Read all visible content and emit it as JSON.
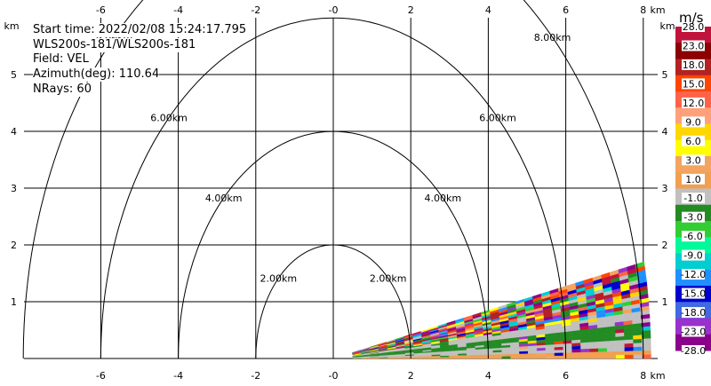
{
  "info": {
    "start_time": "Start time: 2022/02/08 15:24:17.795",
    "instrument": "WLS200s-181/WLS200s-181",
    "field": "Field: VEL",
    "azimuth": "Azimuth(deg): 110.64",
    "nrays": "NRays: 60"
  },
  "colorbar": {
    "units": "m/s",
    "labels": [
      "28.0",
      "23.0",
      "18.0",
      "15.0",
      "12.0",
      "9.0",
      "6.0",
      "3.0",
      "1.0",
      "-1.0",
      "-3.0",
      "-6.0",
      "-9.0",
      "-12.0",
      "-15.0",
      "-18.0",
      "-23.0",
      "-28.0"
    ],
    "colors": [
      "#c0143c",
      "#8b0000",
      "#b22222",
      "#ff4500",
      "#ff6347",
      "#ffa07a",
      "#ffd700",
      "#ffff00",
      "#f4a460",
      "#f0a050",
      "#c0c0c0",
      "#228b22",
      "#32cd32",
      "#00fa9a",
      "#00ced1",
      "#1e90ff",
      "#0000cd",
      "#4169e1",
      "#9932cc",
      "#8b008b"
    ]
  },
  "chart_data": {
    "type": "heatmap",
    "xlabel": "km",
    "ylabel": "km",
    "xlim": [
      -8.5,
      8.2
    ],
    "ylim": [
      0,
      6
    ],
    "x_ticks": [
      "-6",
      "-4",
      "-2",
      "-0",
      "2",
      "4",
      "6",
      "8"
    ],
    "y_ticks": [
      "1",
      "2",
      "3",
      "4",
      "5"
    ],
    "range_rings": [
      {
        "radius": 2,
        "label": "2.00km"
      },
      {
        "radius": 4,
        "label": "4.00km"
      },
      {
        "radius": 6,
        "label": "6.00km"
      },
      {
        "radius": 8,
        "label": "8.00km"
      }
    ],
    "sector": {
      "min_range_km": 0.5,
      "max_range_km": 8.2,
      "max_elevation_deg": 12
    },
    "bands": [
      {
        "r_from_deg": 0.0,
        "r_to_deg": 1.0,
        "value": 1.0,
        "color": "#f0a050"
      },
      {
        "r_from_deg": 1.0,
        "r_to_deg": 2.5,
        "value": 0.0,
        "color": "#c0c0c0"
      },
      {
        "r_from_deg": 2.5,
        "r_to_deg": 4.5,
        "value": -2.0,
        "color": "#228b22"
      },
      {
        "r_from_deg": 4.5,
        "r_to_deg": 6.0,
        "value": 0.0,
        "color": "#c0c0c0"
      },
      {
        "r_from_deg": 6.0,
        "r_to_deg": 12.0,
        "value": "noise",
        "color": "mixed"
      }
    ],
    "grid": true
  }
}
